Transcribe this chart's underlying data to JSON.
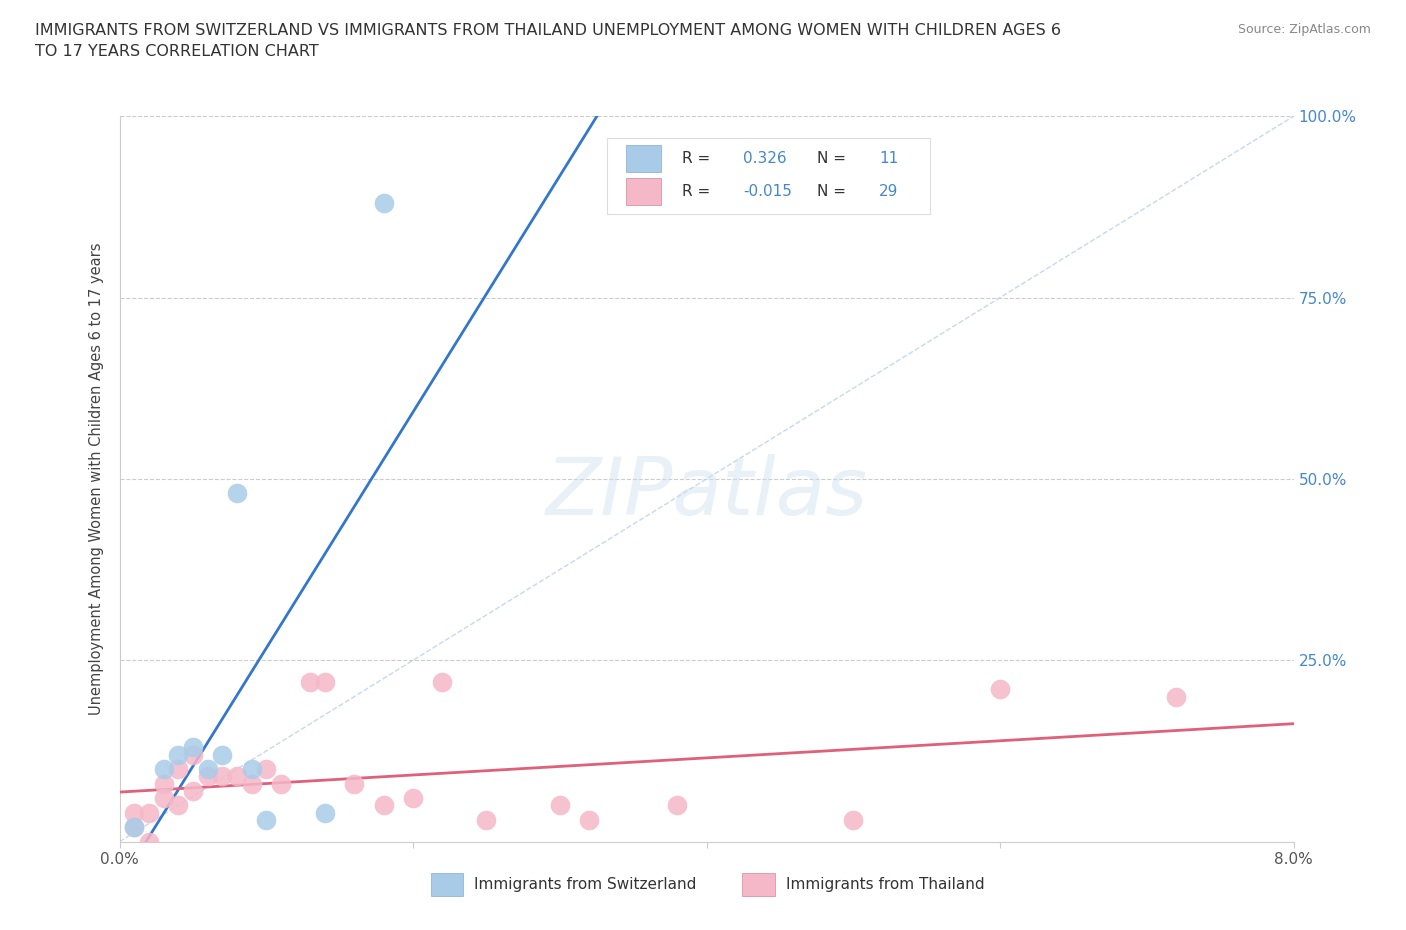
{
  "title_line1": "IMMIGRANTS FROM SWITZERLAND VS IMMIGRANTS FROM THAILAND UNEMPLOYMENT AMONG WOMEN WITH CHILDREN AGES 6",
  "title_line2": "TO 17 YEARS CORRELATION CHART",
  "source": "Source: ZipAtlas.com",
  "ylabel": "Unemployment Among Women with Children Ages 6 to 17 years",
  "xmin": 0.0,
  "xmax": 0.08,
  "ymin": 0.0,
  "ymax": 1.0,
  "swiss_color": "#a8cce8",
  "swiss_line_color": "#3377cc",
  "thailand_color": "#f5b8c8",
  "thailand_line_color": "#e0607a",
  "diagonal_color": "#b8cfe8",
  "r_swiss": 0.326,
  "n_swiss": 11,
  "r_thailand": -0.015,
  "n_thailand": 29,
  "swiss_x": [
    0.001,
    0.003,
    0.004,
    0.005,
    0.006,
    0.007,
    0.008,
    0.009,
    0.01,
    0.014,
    0.018
  ],
  "swiss_y": [
    0.02,
    0.1,
    0.12,
    0.13,
    0.1,
    0.12,
    0.48,
    0.1,
    0.03,
    0.04,
    0.88
  ],
  "thailand_x": [
    0.001,
    0.001,
    0.002,
    0.002,
    0.003,
    0.003,
    0.004,
    0.004,
    0.005,
    0.005,
    0.006,
    0.007,
    0.008,
    0.009,
    0.01,
    0.011,
    0.013,
    0.014,
    0.016,
    0.018,
    0.02,
    0.022,
    0.025,
    0.03,
    0.032,
    0.038,
    0.05,
    0.06,
    0.072
  ],
  "thailand_y": [
    0.04,
    0.02,
    0.04,
    0.0,
    0.08,
    0.06,
    0.1,
    0.05,
    0.12,
    0.07,
    0.09,
    0.09,
    0.09,
    0.08,
    0.1,
    0.08,
    0.22,
    0.22,
    0.08,
    0.05,
    0.06,
    0.22,
    0.03,
    0.05,
    0.03,
    0.05,
    0.03,
    0.21,
    0.2
  ],
  "watermark": "ZIPatlas",
  "background_color": "#ffffff",
  "grid_color": "#cccccc"
}
